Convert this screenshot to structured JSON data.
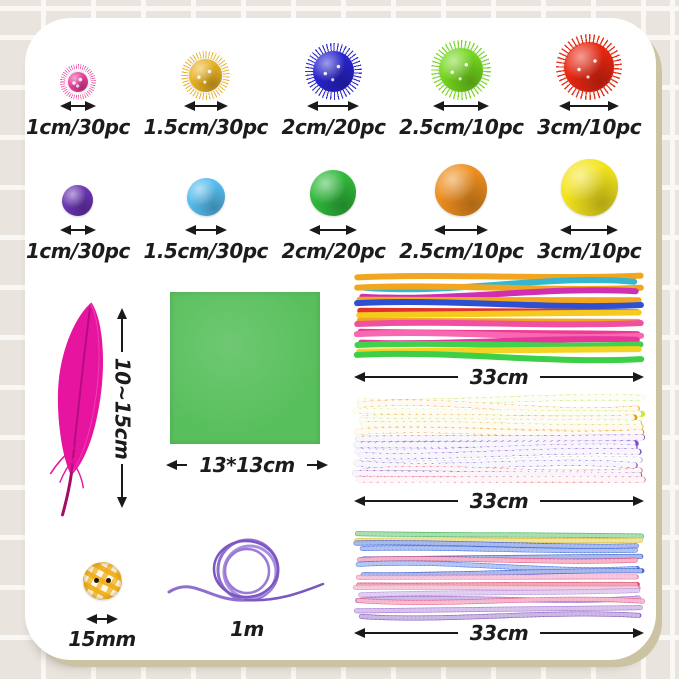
{
  "page": {
    "background_tile": "#e9e4dd",
    "card_background": "#ffffff",
    "card_edge": "#cbc3a4",
    "text_color": "#1c1c1e"
  },
  "glitter_pom_row": {
    "items": [
      {
        "label": "1cm/30pc",
        "color": "#ea3f9e"
      },
      {
        "label": "1.5cm/30pc",
        "color": "#e9b222"
      },
      {
        "label": "2cm/20pc",
        "color": "#2823cd"
      },
      {
        "label": "2.5cm/10pc",
        "color": "#74d71e"
      },
      {
        "label": "3cm/10pc",
        "color": "#e72711"
      }
    ]
  },
  "plain_pom_row": {
    "items": [
      {
        "label": "1cm/30pc",
        "color": "#6a35b2"
      },
      {
        "label": "1.5cm/30pc",
        "color": "#55bdef"
      },
      {
        "label": "2cm/20pc",
        "color": "#2fb93a"
      },
      {
        "label": "2.5cm/10pc",
        "color": "#ee8e1e"
      },
      {
        "label": "3cm/10pc",
        "color": "#f4e41c"
      }
    ]
  },
  "feather": {
    "measure_label": "10~15cm",
    "color": "#e6149e",
    "shaft_color": "#b00870"
  },
  "paper_square": {
    "measure_label": "13*13cm",
    "color": "#57bf5b"
  },
  "bundles": [
    {
      "measure_label": "33cm",
      "style": "solid",
      "colors": [
        "#f2a51f",
        "#35b8cf",
        "#f2a51f",
        "#cf2fb0",
        "#f2a51f",
        "#2d4fd2",
        "#e5322c",
        "#f5c91d",
        "#f2a51f",
        "#f0509f",
        "#ee3b94",
        "#f768b0",
        "#e8359c",
        "#41d14d",
        "#f5d322",
        "#3ecf49"
      ]
    },
    {
      "measure_label": "33cm",
      "style": "striped",
      "colors": [
        "#b5e02b",
        "#ef9417",
        "#c6e836",
        "#ef9417",
        "#aede25",
        "#e8b31e",
        "#ef9417",
        "#6e42c4",
        "#7d4bd0",
        "#9058d8",
        "#6e42c4",
        "#b3b3bd",
        "#7d4bd0",
        "#e63e52",
        "#6e42c4",
        "#e84a5e"
      ]
    },
    {
      "measure_label": "33cm",
      "style": "tinsel",
      "colors": [
        "#2fae43",
        "#d6b71e",
        "#2c54cd",
        "#3d68da",
        "#2c54cd",
        "#e84a7a",
        "#4a74e2",
        "#2c54cd",
        "#e873ab",
        "#d62a4a",
        "#ea83b3",
        "#b28bd9",
        "#8d57c2",
        "#e85a8a",
        "#9d6ace",
        "#7c4eba"
      ]
    }
  ],
  "button": {
    "measure_label": "15mm",
    "color": "#f0af19"
  },
  "cord": {
    "measure_label": "1m",
    "color": "#8f6ed0"
  }
}
